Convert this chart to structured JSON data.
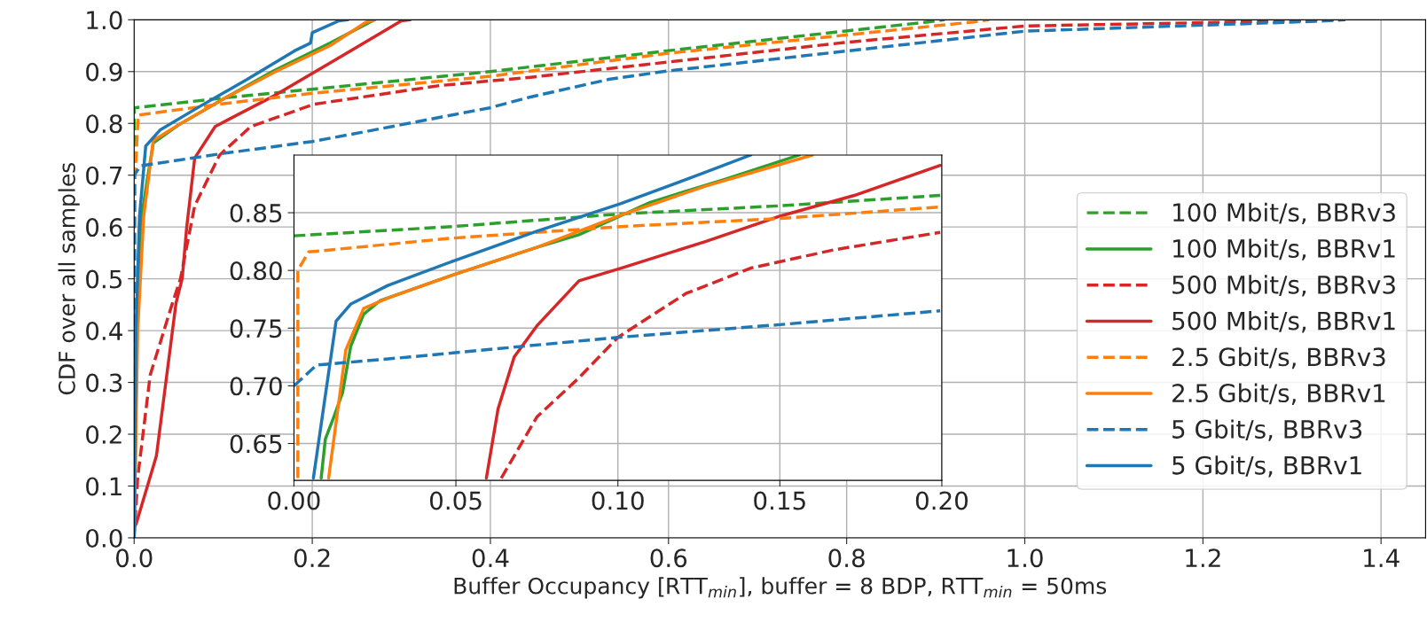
{
  "chart_data": [
    {
      "type": "line",
      "xlabel": "Buffer Occupancy [RTT$_{min}$], buffer = 8 BDP, RTT$_{min}$ = 50ms",
      "ylabel": "CDF over all samples",
      "xlim": [
        0,
        1.45
      ],
      "ylim": [
        0,
        1
      ],
      "xticks": [
        {
          "value": 0,
          "label": "0.0"
        },
        0.2,
        0.4,
        0.6,
        0.8,
        {
          "value": 1,
          "label": "1.0"
        },
        1.2,
        1.4
      ],
      "yticks": [
        {
          "value": 0,
          "label": "0.0"
        },
        0.1,
        0.2,
        0.3,
        0.4,
        0.5,
        0.6,
        0.7,
        0.8,
        0.9,
        {
          "value": 1,
          "label": "1.0"
        }
      ],
      "grid": true,
      "legend": "bottom right",
      "series": [
        {
          "name": "100 Mbit/s, BBRv3",
          "color": "#2ca02c",
          "line_style": "dashed",
          "x": [
            0,
            0,
            0.1,
            0.2,
            0.4,
            0.598,
            0.892,
            0.91
          ],
          "values": [
            0,
            0.83,
            0.849,
            0.866,
            0.9,
            0.94,
            0.996,
            1.0
          ]
        },
        {
          "name": "100 Mbit/s, BBRv1",
          "color": "#2ca02c",
          "line_style": "solid",
          "x": [
            0,
            0.003,
            0.0084,
            0.015,
            0.0215,
            0.049,
            0.101,
            0.156,
            0.22,
            0.27
          ],
          "values": [
            0,
            0.4,
            0.62,
            0.694,
            0.762,
            0.796,
            0.848,
            0.901,
            0.955,
            1.0
          ]
        },
        {
          "name": "500 Mbit/s, BBRv3",
          "color": "#d62728",
          "line_style": "dashed",
          "x": [
            0,
            0.004,
            0.018,
            0.043,
            0.052,
            0.068,
            0.096,
            0.131,
            0.202,
            0.343,
            0.445,
            0.797,
            1.0,
            1.276,
            1.35
          ],
          "values": [
            0,
            0.116,
            0.314,
            0.453,
            0.5,
            0.641,
            0.739,
            0.794,
            0.837,
            0.873,
            0.889,
            0.956,
            0.988,
            0.997,
            1.0
          ]
        },
        {
          "name": "500 Mbit/s, BBRv1",
          "color": "#d62728",
          "line_style": "solid",
          "x": [
            0,
            0.0025,
            0.025,
            0.047,
            0.054,
            0.059,
            0.068,
            0.091,
            0.159,
            0.237,
            0.3,
            0.31
          ],
          "values": [
            0.02,
            0.028,
            0.158,
            0.453,
            0.501,
            0.599,
            0.733,
            0.794,
            0.855,
            0.934,
            0.998,
            1.0
          ]
        },
        {
          "name": "2.5 Gbit/s, BBRv3",
          "color": "#ff7f0e",
          "line_style": "dashed",
          "x": [
            0,
            0.0012,
            0.0045,
            0.1,
            0.2,
            0.4,
            0.598,
            0.943,
            0.96
          ],
          "values": [
            0,
            0.7,
            0.816,
            0.838,
            0.858,
            0.891,
            0.935,
            0.996,
            1.0
          ]
        },
        {
          "name": "2.5 Gbit/s, BBRv1",
          "color": "#ff7f0e",
          "line_style": "solid",
          "x": [
            0,
            0.004,
            0.0107,
            0.0215,
            0.049,
            0.101,
            0.16,
            0.22,
            0.26,
            0.27
          ],
          "values": [
            0,
            0.4,
            0.62,
            0.767,
            0.796,
            0.848,
            0.901,
            0.95,
            0.995,
            1.0
          ]
        },
        {
          "name": "5 Gbit/s, BBRv3",
          "color": "#1f77b4",
          "line_style": "dashed",
          "x": [
            0,
            0,
            0.007,
            0.1,
            0.2,
            0.244,
            0.399,
            0.445,
            0.533,
            0.598,
            1.0,
            1.326,
            1.36
          ],
          "values": [
            0,
            0.7,
            0.718,
            0.742,
            0.765,
            0.779,
            0.83,
            0.851,
            0.885,
            0.901,
            0.978,
            0.997,
            1.0
          ]
        },
        {
          "name": "5 Gbit/s, BBRv1",
          "color": "#1f77b4",
          "line_style": "solid",
          "x": [
            0,
            0.002,
            0.006,
            0.013,
            0.029,
            0.075,
            0.127,
            0.18,
            0.198,
            0.2,
            0.23,
            0.24
          ],
          "values": [
            0,
            0.4,
            0.62,
            0.756,
            0.787,
            0.834,
            0.885,
            0.94,
            0.955,
            0.975,
            0.998,
            1.0
          ]
        }
      ]
    },
    {
      "type": "line",
      "xlim": [
        0,
        0.2
      ],
      "ylim": [
        0.618,
        0.9
      ],
      "xticks": [
        {
          "value": 0,
          "label": "0.00"
        },
        {
          "value": 0.05,
          "label": "0.05"
        },
        {
          "value": 0.1,
          "label": "0.10"
        },
        {
          "value": 0.15,
          "label": "0.15"
        },
        {
          "value": 0.2,
          "label": "0.20"
        }
      ],
      "yticks": [
        {
          "value": 0.65,
          "label": "0.65"
        },
        {
          "value": 0.7,
          "label": "0.70"
        },
        {
          "value": 0.75,
          "label": "0.75"
        },
        {
          "value": 0.8,
          "label": "0.80"
        },
        {
          "value": 0.85,
          "label": "0.85"
        }
      ],
      "grid": true,
      "series": [
        {
          "color": "#2ca02c",
          "line_style": "dashed",
          "x": [
            0,
            0.049,
            0.101,
            0.15,
            0.1995
          ],
          "values": [
            0.83,
            0.838,
            0.849,
            0.856,
            0.865
          ]
        },
        {
          "color": "#2ca02c",
          "line_style": "solid",
          "x": [
            0.0084,
            0.0097,
            0.0123,
            0.015,
            0.0175,
            0.0215,
            0.0267,
            0.049,
            0.075,
            0.088,
            0.11,
            0.133,
            0.156
          ],
          "values": [
            0.62,
            0.654,
            0.673,
            0.694,
            0.734,
            0.762,
            0.774,
            0.796,
            0.82,
            0.831,
            0.859,
            0.879,
            0.9
          ]
        },
        {
          "color": "#d62728",
          "line_style": "dashed",
          "x": [
            0.064,
            0.075,
            0.088,
            0.1,
            0.121,
            0.141,
            0.167,
            0.1995
          ],
          "values": [
            0.62,
            0.673,
            0.707,
            0.742,
            0.78,
            0.802,
            0.818,
            0.833
          ]
        },
        {
          "color": "#d62728",
          "line_style": "solid",
          "x": [
            0.0594,
            0.063,
            0.068,
            0.075,
            0.088,
            0.101,
            0.127,
            0.15,
            0.173,
            0.1995
          ],
          "values": [
            0.62,
            0.68,
            0.725,
            0.752,
            0.791,
            0.802,
            0.825,
            0.847,
            0.865,
            0.891
          ]
        },
        {
          "color": "#ff7f0e",
          "line_style": "dashed",
          "x": [
            0.0012,
            0.0012,
            0.0045,
            0.049,
            0.101,
            0.15,
            0.1995
          ],
          "values": [
            0.62,
            0.8,
            0.816,
            0.828,
            0.838,
            0.845,
            0.855
          ]
        },
        {
          "color": "#ff7f0e",
          "line_style": "solid",
          "x": [
            0.0107,
            0.016,
            0.0215,
            0.029,
            0.049,
            0.075,
            0.101,
            0.127,
            0.16
          ],
          "values": [
            0.62,
            0.731,
            0.767,
            0.776,
            0.796,
            0.82,
            0.848,
            0.873,
            0.9
          ]
        },
        {
          "color": "#1f77b4",
          "line_style": "dashed",
          "x": [
            0,
            0.007,
            0.036,
            0.1,
            0.15,
            0.1995
          ],
          "values": [
            0.7,
            0.718,
            0.725,
            0.742,
            0.753,
            0.765
          ]
        },
        {
          "color": "#1f77b4",
          "line_style": "solid",
          "x": [
            0.006,
            0.013,
            0.0176,
            0.029,
            0.049,
            0.075,
            0.101,
            0.127,
            0.141
          ],
          "values": [
            0.62,
            0.756,
            0.771,
            0.787,
            0.808,
            0.834,
            0.858,
            0.885,
            0.9
          ]
        }
      ]
    }
  ]
}
